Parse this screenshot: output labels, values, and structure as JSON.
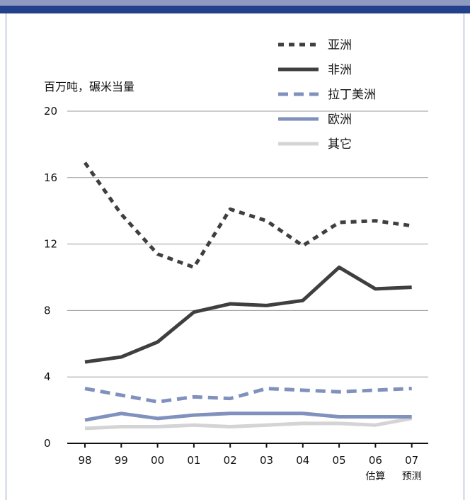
{
  "chart_data": {
    "type": "line",
    "ylabel": "百万吨，碾米当量",
    "ylim": [
      0,
      20
    ],
    "yticks": [
      "0",
      "4",
      "8",
      "12",
      "16",
      "20"
    ],
    "categories": [
      "98",
      "99",
      "00",
      "01",
      "02",
      "03",
      "04",
      "05",
      "06",
      "07"
    ],
    "category_sublabels": [
      "",
      "",
      "",
      "",
      "",
      "",
      "",
      "",
      "估算",
      "预测"
    ],
    "grid": "horizontal",
    "legend_position": "top-right",
    "series": [
      {
        "name": "亚洲",
        "values": [
          16.9,
          13.8,
          11.4,
          10.6,
          14.1,
          13.4,
          11.9,
          13.3,
          13.4,
          13.1
        ],
        "color": "#3f3f3f",
        "style": "dotted"
      },
      {
        "name": "非洲",
        "values": [
          4.9,
          5.2,
          6.1,
          7.9,
          8.4,
          8.3,
          8.6,
          10.6,
          9.3,
          9.4
        ],
        "color": "#3f3f3f",
        "style": "solid"
      },
      {
        "name": "拉丁美洲",
        "values": [
          3.3,
          2.9,
          2.5,
          2.8,
          2.7,
          3.3,
          3.2,
          3.1,
          3.2,
          3.3
        ],
        "color": "#8191bd",
        "style": "dashed"
      },
      {
        "name": "欧洲",
        "values": [
          1.4,
          1.8,
          1.5,
          1.7,
          1.8,
          1.8,
          1.8,
          1.6,
          1.6,
          1.6
        ],
        "color": "#8191bd",
        "style": "solid"
      },
      {
        "name": "其它",
        "values": [
          0.9,
          1.0,
          1.0,
          1.1,
          1.0,
          1.1,
          1.2,
          1.2,
          1.1,
          1.5
        ],
        "color": "#d4d4d4",
        "style": "solid"
      }
    ]
  }
}
